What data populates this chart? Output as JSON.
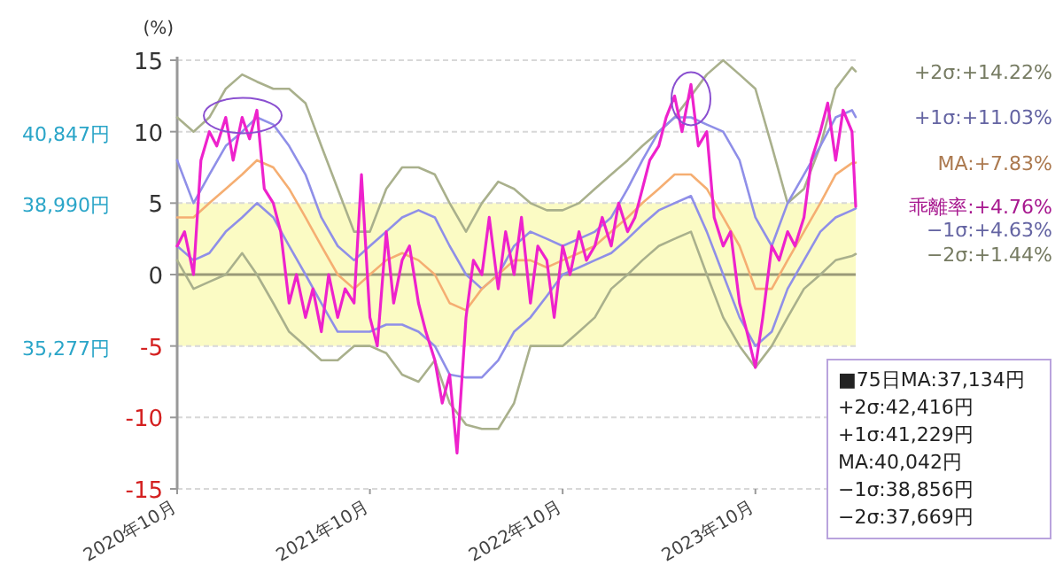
{
  "chart_data": {
    "type": "line",
    "ylabel": "(%)",
    "x": [
      "2020-10-01",
      "2020-11-01",
      "2020-12-01",
      "2021-01-01",
      "2021-02-01",
      "2021-03-01",
      "2021-04-01",
      "2021-05-01",
      "2021-06-01",
      "2021-07-01",
      "2021-08-01",
      "2021-09-01",
      "2021-10-01",
      "2021-11-01",
      "2021-12-01",
      "2022-01-01",
      "2022-02-01",
      "2022-03-01",
      "2022-04-01",
      "2022-05-01",
      "2022-06-01",
      "2022-07-01",
      "2022-08-01",
      "2022-09-01",
      "2022-10-01",
      "2022-11-01",
      "2022-12-01",
      "2023-01-01",
      "2023-02-01",
      "2023-03-01",
      "2023-04-01",
      "2023-05-01",
      "2023-06-01",
      "2023-07-01",
      "2023-08-01",
      "2023-09-01",
      "2023-10-01",
      "2023-11-01",
      "2023-12-01",
      "2024-01-01",
      "2024-02-01",
      "2024-03-01",
      "2024-04-01",
      "2024-04-08"
    ],
    "series": [
      {
        "name": "+2σ:+14.22%",
        "color": "#a9b08c",
        "values": [
          11,
          10,
          11,
          13,
          14,
          13.5,
          13,
          13,
          12,
          9,
          6,
          3,
          3,
          6,
          7.5,
          7.5,
          7,
          5,
          3,
          5,
          6.5,
          6,
          5,
          4.5,
          4.5,
          5,
          6,
          7,
          8,
          9,
          10,
          11,
          12.5,
          14,
          15,
          14,
          13,
          9,
          5,
          6,
          9,
          13,
          14.5,
          14.22
        ]
      },
      {
        "name": "+1σ:+11.03%",
        "color": "#8f8fe8",
        "values": [
          8,
          5,
          7,
          9,
          10,
          11,
          10.5,
          9,
          7,
          4,
          2,
          1,
          2,
          3,
          4,
          4.5,
          4,
          2,
          0,
          -1,
          0,
          2,
          3,
          2.5,
          2,
          2.5,
          3,
          4,
          6,
          8,
          10,
          11,
          11,
          10.5,
          10,
          8,
          4,
          2,
          5,
          7,
          9,
          11,
          11.5,
          11.03
        ]
      },
      {
        "name": "MA:+7.83%",
        "color": "#f5ae72",
        "values": [
          4,
          4,
          5,
          6,
          7,
          8,
          7.5,
          6,
          4,
          2,
          0,
          -1,
          0,
          1,
          1.5,
          1,
          0,
          -2,
          -2.5,
          -1,
          0,
          1,
          1,
          0.5,
          1,
          1.5,
          2,
          3,
          4,
          5,
          6,
          7,
          7,
          6,
          4,
          2,
          -1,
          -1,
          1,
          3,
          5,
          7,
          7.8,
          7.83
        ]
      },
      {
        "name": "−1σ:+4.63%",
        "color": "#8f8fe8",
        "values": [
          2,
          1,
          1.5,
          3,
          4,
          5,
          4,
          2,
          0,
          -2,
          -4,
          -4,
          -4,
          -3.5,
          -3.5,
          -4,
          -5,
          -7,
          -7.2,
          -7.2,
          -6,
          -4,
          -3,
          -1.5,
          0,
          0.5,
          1,
          1.5,
          2.5,
          3.5,
          4.5,
          5,
          5.5,
          3,
          0,
          -3,
          -5,
          -4,
          -1,
          1,
          3,
          4,
          4.5,
          4.63
        ]
      },
      {
        "name": "−2σ:+1.44%",
        "color": "#a9b08c",
        "values": [
          1,
          -1,
          -0.5,
          0,
          1.5,
          0,
          -2,
          -4,
          -5,
          -6,
          -6,
          -5,
          -5,
          -5.5,
          -7,
          -7.5,
          -6,
          -9,
          -10.5,
          -10.8,
          -10.8,
          -9,
          -5,
          -5,
          -5,
          -4,
          -3,
          -1,
          0,
          1,
          2,
          2.5,
          3,
          0,
          -3,
          -5,
          -6.5,
          -5,
          -3,
          -1,
          0,
          1,
          1.3,
          1.44
        ]
      },
      {
        "name": "乖離率:+4.76%",
        "color": "#ee22cc",
        "x": [
          "2020-10-01",
          "2020-10-15",
          "2020-11-01",
          "2020-11-15",
          "2020-12-01",
          "2020-12-15",
          "2021-01-01",
          "2021-01-15",
          "2021-02-01",
          "2021-02-15",
          "2021-03-01",
          "2021-03-15",
          "2021-04-01",
          "2021-04-15",
          "2021-05-01",
          "2021-05-15",
          "2021-06-01",
          "2021-06-15",
          "2021-07-01",
          "2021-07-15",
          "2021-08-01",
          "2021-08-15",
          "2021-09-01",
          "2021-09-15",
          "2021-10-01",
          "2021-10-15",
          "2021-11-01",
          "2021-11-15",
          "2021-12-01",
          "2021-12-15",
          "2022-01-01",
          "2022-01-15",
          "2022-02-01",
          "2022-02-15",
          "2022-03-01",
          "2022-03-15",
          "2022-04-01",
          "2022-04-15",
          "2022-05-01",
          "2022-05-15",
          "2022-06-01",
          "2022-06-15",
          "2022-07-01",
          "2022-07-15",
          "2022-08-01",
          "2022-08-15",
          "2022-09-01",
          "2022-09-15",
          "2022-10-01",
          "2022-10-15",
          "2022-11-01",
          "2022-11-15",
          "2022-12-01",
          "2022-12-15",
          "2023-01-01",
          "2023-01-15",
          "2023-02-01",
          "2023-02-15",
          "2023-03-01",
          "2023-03-15",
          "2023-04-01",
          "2023-04-15",
          "2023-05-01",
          "2023-05-15",
          "2023-06-01",
          "2023-06-15",
          "2023-07-01",
          "2023-07-15",
          "2023-08-01",
          "2023-08-15",
          "2023-09-01",
          "2023-09-15",
          "2023-10-01",
          "2023-10-15",
          "2023-11-01",
          "2023-11-15",
          "2023-12-01",
          "2023-12-15",
          "2024-01-01",
          "2024-01-15",
          "2024-02-01",
          "2024-02-15",
          "2024-03-01",
          "2024-03-15",
          "2024-04-01",
          "2024-04-08"
        ],
        "values": [
          2,
          3,
          0,
          8,
          10,
          9,
          11,
          8,
          11,
          9.5,
          11.5,
          6,
          5,
          3,
          -2,
          0,
          -3,
          -1,
          -4,
          0,
          -3,
          -1,
          -2,
          7,
          -3,
          -5,
          3,
          -2,
          1,
          2,
          -2,
          -4,
          -6,
          -9,
          -7,
          -12.5,
          -3,
          1,
          0,
          4,
          -1,
          3,
          0,
          4,
          -2,
          2,
          1,
          -3,
          2,
          0,
          3,
          1,
          2,
          4,
          2,
          5,
          3,
          4,
          6,
          8,
          9,
          11,
          12.5,
          10,
          13.3,
          9,
          10,
          4,
          2,
          3,
          -2,
          -4,
          -6.5,
          -3,
          2,
          1,
          3,
          2,
          4,
          8,
          10,
          12,
          8,
          11.5,
          10,
          4.76
        ]
      }
    ],
    "xlim": [
      "2020-10-01",
      "2024-04-08"
    ],
    "xticks": [
      {
        "value": "2020-10-01",
        "label": "2020年10月"
      },
      {
        "value": "2021-10-01",
        "label": "2021年10月"
      },
      {
        "value": "2022-10-01",
        "label": "2022年10月"
      },
      {
        "value": "2023-10-01",
        "label": "2023年10月"
      }
    ],
    "ylim": [
      -15,
      15
    ],
    "yticks": [
      -15,
      -10,
      -5,
      0,
      5,
      10,
      15
    ],
    "bands": [
      {
        "axis": "y",
        "from": -5,
        "to": 5,
        "color": "#fbfbc4"
      }
    ],
    "ref_lines": [
      {
        "axis": "y",
        "value": 0,
        "color": "#9a9a78"
      }
    ],
    "grid": "y",
    "annotations": [
      "40,847円",
      "38,990円",
      "35,277円",
      "■75日MA:37,134円",
      "+2σ:42,416円",
      "+1σ:41,229円",
      "MA:40,042円",
      "−1σ:38,856円",
      "−2σ:37,669円"
    ]
  }
}
